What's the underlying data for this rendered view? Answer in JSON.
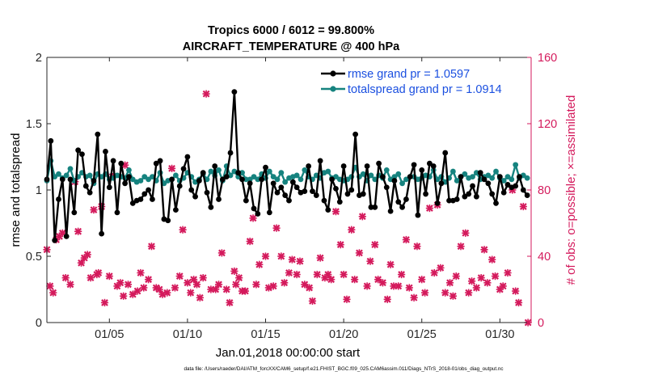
{
  "title_line1": "Tropics 6000 / 6012 = 99.800%",
  "title_line2": "AIRCRAFT_TEMPERATURE @ 400 hPa",
  "footer": "data file: /Users/raeder/DAI/ATM_forcXX/CAM6_setup/f.e21.FHIST_BGC.f09_025.CAM6assim.011/Diags_NTrS_2018-01/obs_diag_output.nc",
  "colors": {
    "rmse": "#000000",
    "spread": "#16837f",
    "obs": "#d41a5c",
    "right_axis": "#d41a5c",
    "legend_text": "#1a4fe0"
  },
  "chart_data": {
    "type": "line",
    "xlabel": "Jan.01,2018 00:00:00 start",
    "ylabel_left": "rmse and totalspread",
    "ylabel_right": "# of obs: o=possible; ×=assimilated",
    "xlim": [
      1,
      32
    ],
    "ylim_left": [
      0,
      2
    ],
    "ylim_right": [
      0,
      160
    ],
    "x_ticks": [
      5,
      10,
      15,
      20,
      25,
      30
    ],
    "x_tick_labels": [
      "01/05",
      "01/10",
      "01/15",
      "01/20",
      "01/25",
      "01/30"
    ],
    "y_ticks_left": [
      0,
      0.5,
      1,
      1.5,
      2
    ],
    "y_tick_labels_left": [
      "0",
      "0.5",
      "1",
      "1.5",
      "2"
    ],
    "y_ticks_right": [
      0,
      40,
      80,
      120,
      160
    ],
    "y_tick_labels_right": [
      "0",
      "40",
      "80",
      "120",
      "160"
    ],
    "legend": {
      "location": "top-right",
      "entries": [
        "rmse grand pr = 1.0597",
        "totalspread grand pr = 1.0914"
      ]
    },
    "series": [
      {
        "name": "rmse",
        "axis": "left",
        "x_start": 1.0,
        "x_step": 0.25,
        "values": [
          1.08,
          1.37,
          0.62,
          0.93,
          1.08,
          0.65,
          1.08,
          0.83,
          1.3,
          1.27,
          1.03,
          0.98,
          1.07,
          1.42,
          0.67,
          1.29,
          1.02,
          1.22,
          0.83,
          1.2,
          1.05,
          1.1,
          0.9,
          0.92,
          0.93,
          0.97,
          1.0,
          0.93,
          1.2,
          1.22,
          0.78,
          0.77,
          1.08,
          0.85,
          1.03,
          1.16,
          1.25,
          1.0,
          0.95,
          1.07,
          1.13,
          0.98,
          0.87,
          1.18,
          0.93,
          1.08,
          1.1,
          1.28,
          1.74,
          1.13,
          1.08,
          0.92,
          1.05,
          0.86,
          0.82,
          1.08,
          1.17,
          0.83,
          1.05,
          0.98,
          1.02,
          0.96,
          0.92,
          1.06,
          1.02,
          0.98,
          0.99,
          1.18,
          0.99,
          0.96,
          1.22,
          0.92,
          0.85,
          1.08,
          1.01,
          0.91,
          1.18,
          0.97,
          1.0,
          1.42,
          0.96,
          0.97,
          1.18,
          0.87,
          0.87,
          1.2,
          1.1,
          1.02,
          0.84,
          1.07,
          0.91,
          0.87,
          0.93,
          1.1,
          1.19,
          0.81,
          1.15,
          0.97,
          1.2,
          1.18,
          0.9,
          1.05,
          1.28,
          0.92,
          0.92,
          0.93,
          1.1,
          0.95,
          0.97,
          1.03,
          0.95,
          1.13,
          1.08,
          1.05,
          0.97,
          0.9,
          1.1,
          0.98,
          1.04,
          1.02,
          1.03,
          1.1,
          1.0,
          0.96
        ]
      },
      {
        "name": "totalspread",
        "axis": "left",
        "x_start": 1.0,
        "x_step": 0.25,
        "values": [
          1.07,
          1.22,
          1.1,
          1.12,
          1.09,
          1.11,
          1.16,
          1.07,
          1.1,
          1.13,
          1.1,
          1.11,
          1.05,
          1.12,
          1.1,
          1.12,
          1.08,
          1.09,
          1.11,
          1.1,
          1.09,
          1.15,
          1.08,
          1.06,
          1.07,
          1.1,
          1.08,
          1.1,
          1.07,
          1.13,
          1.05,
          1.07,
          1.08,
          1.11,
          1.07,
          1.09,
          1.13,
          1.1,
          1.06,
          1.08,
          1.12,
          1.08,
          1.14,
          1.11,
          1.15,
          1.07,
          1.18,
          1.11,
          1.14,
          1.1,
          1.13,
          1.08,
          1.08,
          1.1,
          1.08,
          1.12,
          1.09,
          1.14,
          1.1,
          1.08,
          1.13,
          1.06,
          1.09,
          1.1,
          1.11,
          1.08,
          1.15,
          1.1,
          1.08,
          1.11,
          1.09,
          1.13,
          1.14,
          1.09,
          1.1,
          1.08,
          1.07,
          1.08,
          1.1,
          1.17,
          1.1,
          1.12,
          1.07,
          1.11,
          1.08,
          1.11,
          1.09,
          1.15,
          1.08,
          1.1,
          1.12,
          1.05,
          1.08,
          1.1,
          1.1,
          1.08,
          1.09,
          1.11,
          1.1,
          1.15,
          1.08,
          1.1,
          1.06,
          1.09,
          1.14,
          1.07,
          1.1,
          1.12,
          1.09,
          1.1,
          1.13,
          1.08,
          1.1,
          1.11,
          1.09,
          1.14,
          1.09,
          1.07,
          1.1,
          1.08,
          1.19,
          1.09,
          1.11,
          1.09
        ]
      },
      {
        "name": "assimilated_obs",
        "axis": "right",
        "marker": "x",
        "x": [
          1.0,
          1.2,
          1.4,
          1.6,
          1.8,
          2.0,
          2.2,
          2.5,
          2.8,
          3.0,
          3.2,
          3.4,
          3.6,
          3.8,
          4.0,
          4.2,
          4.3,
          4.5,
          4.7,
          5.0,
          5.2,
          5.5,
          5.7,
          5.9,
          6.0,
          6.2,
          6.5,
          6.8,
          7.0,
          7.2,
          7.5,
          7.7,
          8.0,
          8.2,
          8.4,
          8.7,
          9.0,
          9.2,
          9.5,
          9.7,
          10.0,
          10.2,
          10.4,
          10.6,
          10.8,
          11.0,
          11.2,
          11.5,
          11.8,
          12.0,
          12.2,
          12.5,
          12.7,
          13.0,
          13.1,
          13.3,
          13.5,
          13.7,
          14.0,
          14.2,
          14.4,
          14.6,
          15.0,
          15.2,
          15.5,
          15.7,
          16.0,
          16.2,
          16.5,
          16.7,
          17.0,
          17.2,
          17.5,
          17.8,
          18.0,
          18.3,
          18.5,
          18.8,
          19.0,
          19.2,
          19.5,
          19.8,
          20.0,
          20.2,
          20.5,
          20.7,
          21.0,
          21.2,
          21.5,
          21.7,
          22.0,
          22.2,
          22.5,
          22.8,
          23.0,
          23.2,
          23.5,
          23.7,
          24.0,
          24.2,
          24.5,
          24.7,
          25.0,
          25.2,
          25.5,
          25.8,
          26.0,
          26.2,
          26.5,
          26.8,
          27.0,
          27.2,
          27.5,
          27.8,
          28.0,
          28.2,
          28.5,
          28.8,
          29.0,
          29.2,
          29.5,
          29.7,
          30.0,
          30.2,
          30.5,
          30.8,
          31.0,
          31.2,
          31.5,
          31.8
        ],
        "values": [
          44,
          22,
          18,
          50,
          52,
          54,
          27,
          23,
          85,
          55,
          36,
          39,
          41,
          27,
          68,
          29,
          30,
          70,
          12,
          28,
          88,
          22,
          24,
          16,
          95,
          23,
          17,
          19,
          30,
          21,
          26,
          46,
          21,
          20,
          17,
          18,
          93,
          21,
          28,
          56,
          24,
          18,
          26,
          23,
          15,
          27,
          138,
          20,
          20,
          23,
          42,
          20,
          12,
          31,
          23,
          27,
          19,
          19,
          49,
          63,
          23,
          35,
          40,
          21,
          22,
          57,
          40,
          24,
          30,
          38,
          29,
          37,
          23,
          21,
          13,
          29,
          39,
          27,
          29,
          26,
          67,
          47,
          29,
          14,
          56,
          26,
          42,
          64,
          22,
          37,
          47,
          26,
          24,
          14,
          35,
          22,
          22,
          29,
          50,
          21,
          15,
          46,
          26,
          18,
          69,
          30,
          71,
          33,
          18,
          24,
          16,
          28,
          46,
          54,
          18,
          25,
          21,
          27,
          44,
          24,
          38,
          28,
          20,
          22,
          30,
          80,
          19,
          12,
          70,
          0
        ]
      }
    ]
  }
}
